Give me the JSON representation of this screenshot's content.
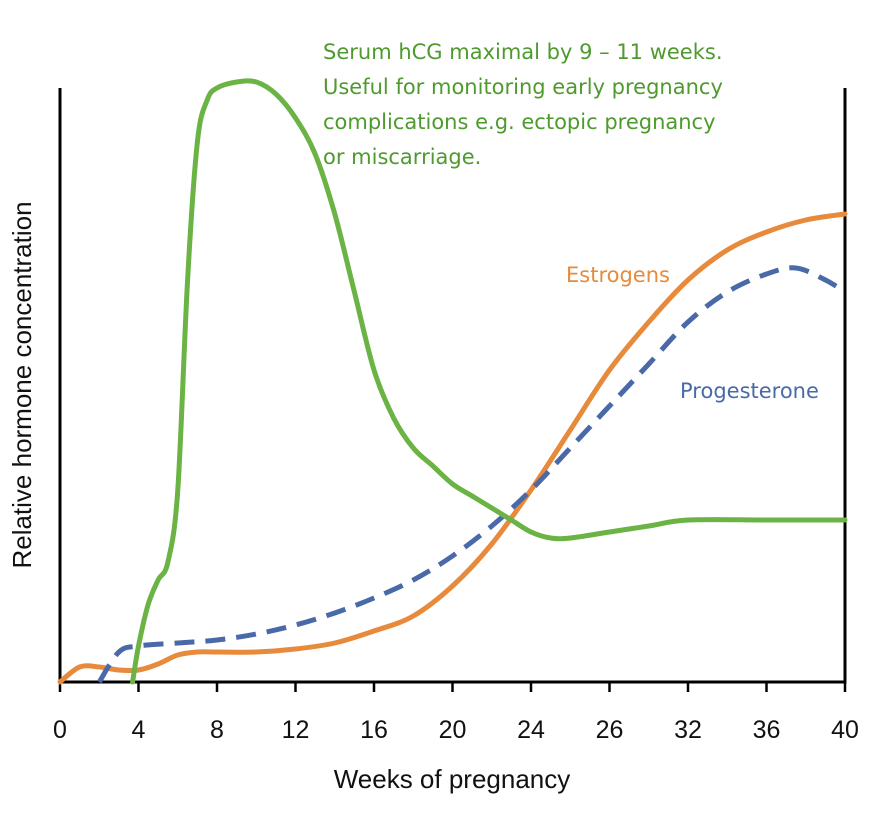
{
  "chart_data": {
    "type": "line",
    "title": "",
    "xlabel": "Weeks of pregnancy",
    "ylabel": "Relative hormone concentration",
    "x_ticks": [
      "0",
      "4",
      "8",
      "12",
      "16",
      "20",
      "24",
      "26",
      "32",
      "36",
      "40"
    ],
    "xlim": [
      0,
      40
    ],
    "ylim": [
      0,
      100
    ],
    "grid": false,
    "series": [
      {
        "name": "Serum hCG",
        "color": "#6ab344",
        "style": "solid",
        "x": [
          3.7,
          4,
          4.5,
          5,
          5.5,
          6,
          6.5,
          7,
          7.5,
          8,
          9,
          10,
          11,
          12,
          13,
          14,
          15,
          16,
          17,
          18,
          19,
          20,
          21,
          22,
          23,
          24,
          25,
          26,
          28,
          30,
          32,
          36,
          40
        ],
        "y": [
          0,
          6,
          13,
          17,
          20,
          32,
          67,
          90,
          97,
          99,
          100,
          100,
          98,
          94,
          88,
          78,
          65,
          52,
          44,
          39,
          36,
          33,
          31,
          29,
          27,
          25,
          24,
          24,
          25,
          26,
          27,
          27,
          27
        ]
      },
      {
        "name": "Estrogens",
        "color": "#e88a3c",
        "style": "solid",
        "x": [
          0,
          1,
          2,
          3,
          4,
          5,
          6,
          7,
          8,
          10,
          12,
          14,
          16,
          18,
          20,
          22,
          24,
          26,
          28,
          30,
          32,
          34,
          36,
          38,
          40
        ],
        "y": [
          0,
          2.5,
          2.5,
          2,
          2,
          3,
          4.5,
          5,
          5,
          5,
          5.5,
          6.5,
          8.5,
          11,
          16,
          23,
          32,
          42,
          52,
          60,
          67,
          72,
          75,
          77,
          78
        ]
      },
      {
        "name": "Progesterone",
        "color": "#4a69a8",
        "style": "dashed",
        "x": [
          2,
          3,
          4,
          6,
          8,
          10,
          12,
          14,
          16,
          18,
          20,
          22,
          24,
          26,
          28,
          30,
          32,
          34,
          36,
          37.5,
          39,
          40
        ],
        "y": [
          0,
          5,
          6,
          6.5,
          7,
          8,
          9.5,
          11.5,
          14,
          17,
          21,
          26,
          32,
          39,
          46,
          53,
          60,
          65,
          68,
          69,
          67,
          65
        ]
      }
    ],
    "series_labels": {
      "estrogens": "Estrogens",
      "progesterone": "Progesterone"
    },
    "annotation": {
      "lines": [
        "Serum hCG maximal by 9 – 11 weeks.",
        "Useful for monitoring early pregnancy",
        "complications e.g. ectopic pregnancy",
        "or miscarriage."
      ]
    }
  }
}
